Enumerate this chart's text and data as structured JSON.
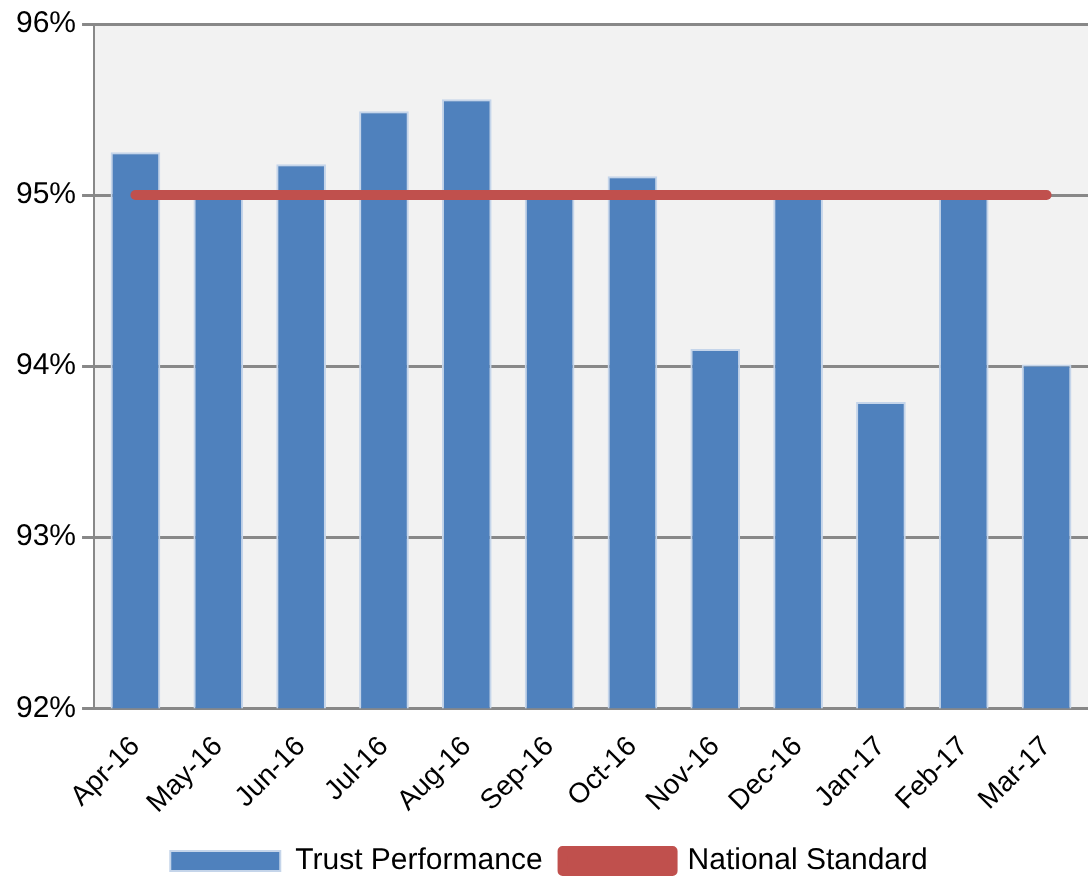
{
  "chart_data": {
    "type": "bar",
    "categories": [
      "Apr-16",
      "May-16",
      "Jun-16",
      "Jul-16",
      "Aug-16",
      "Sep-16",
      "Oct-16",
      "Nov-16",
      "Dec-16",
      "Jan-17",
      "Feb-17",
      "Mar-17"
    ],
    "series": [
      {
        "name": "Trust Performance",
        "color": "#4f81bd",
        "values": [
          95.25,
          95.0,
          95.18,
          95.49,
          95.56,
          95.0,
          95.11,
          94.1,
          95.0,
          93.79,
          95.0,
          94.01
        ]
      },
      {
        "name": "National Standard",
        "type": "line",
        "color": "#c0504d",
        "values": [
          95,
          95,
          95,
          95,
          95,
          95,
          95,
          95,
          95,
          95,
          95,
          95
        ]
      }
    ],
    "ylim": [
      92,
      96
    ],
    "yticks": [
      {
        "value": 92,
        "label": "92%"
      },
      {
        "value": 93,
        "label": "93%"
      },
      {
        "value": 94,
        "label": "94%"
      },
      {
        "value": 95,
        "label": "95%"
      },
      {
        "value": 96,
        "label": "96%"
      }
    ],
    "grid": "y",
    "legend": "bottom"
  }
}
